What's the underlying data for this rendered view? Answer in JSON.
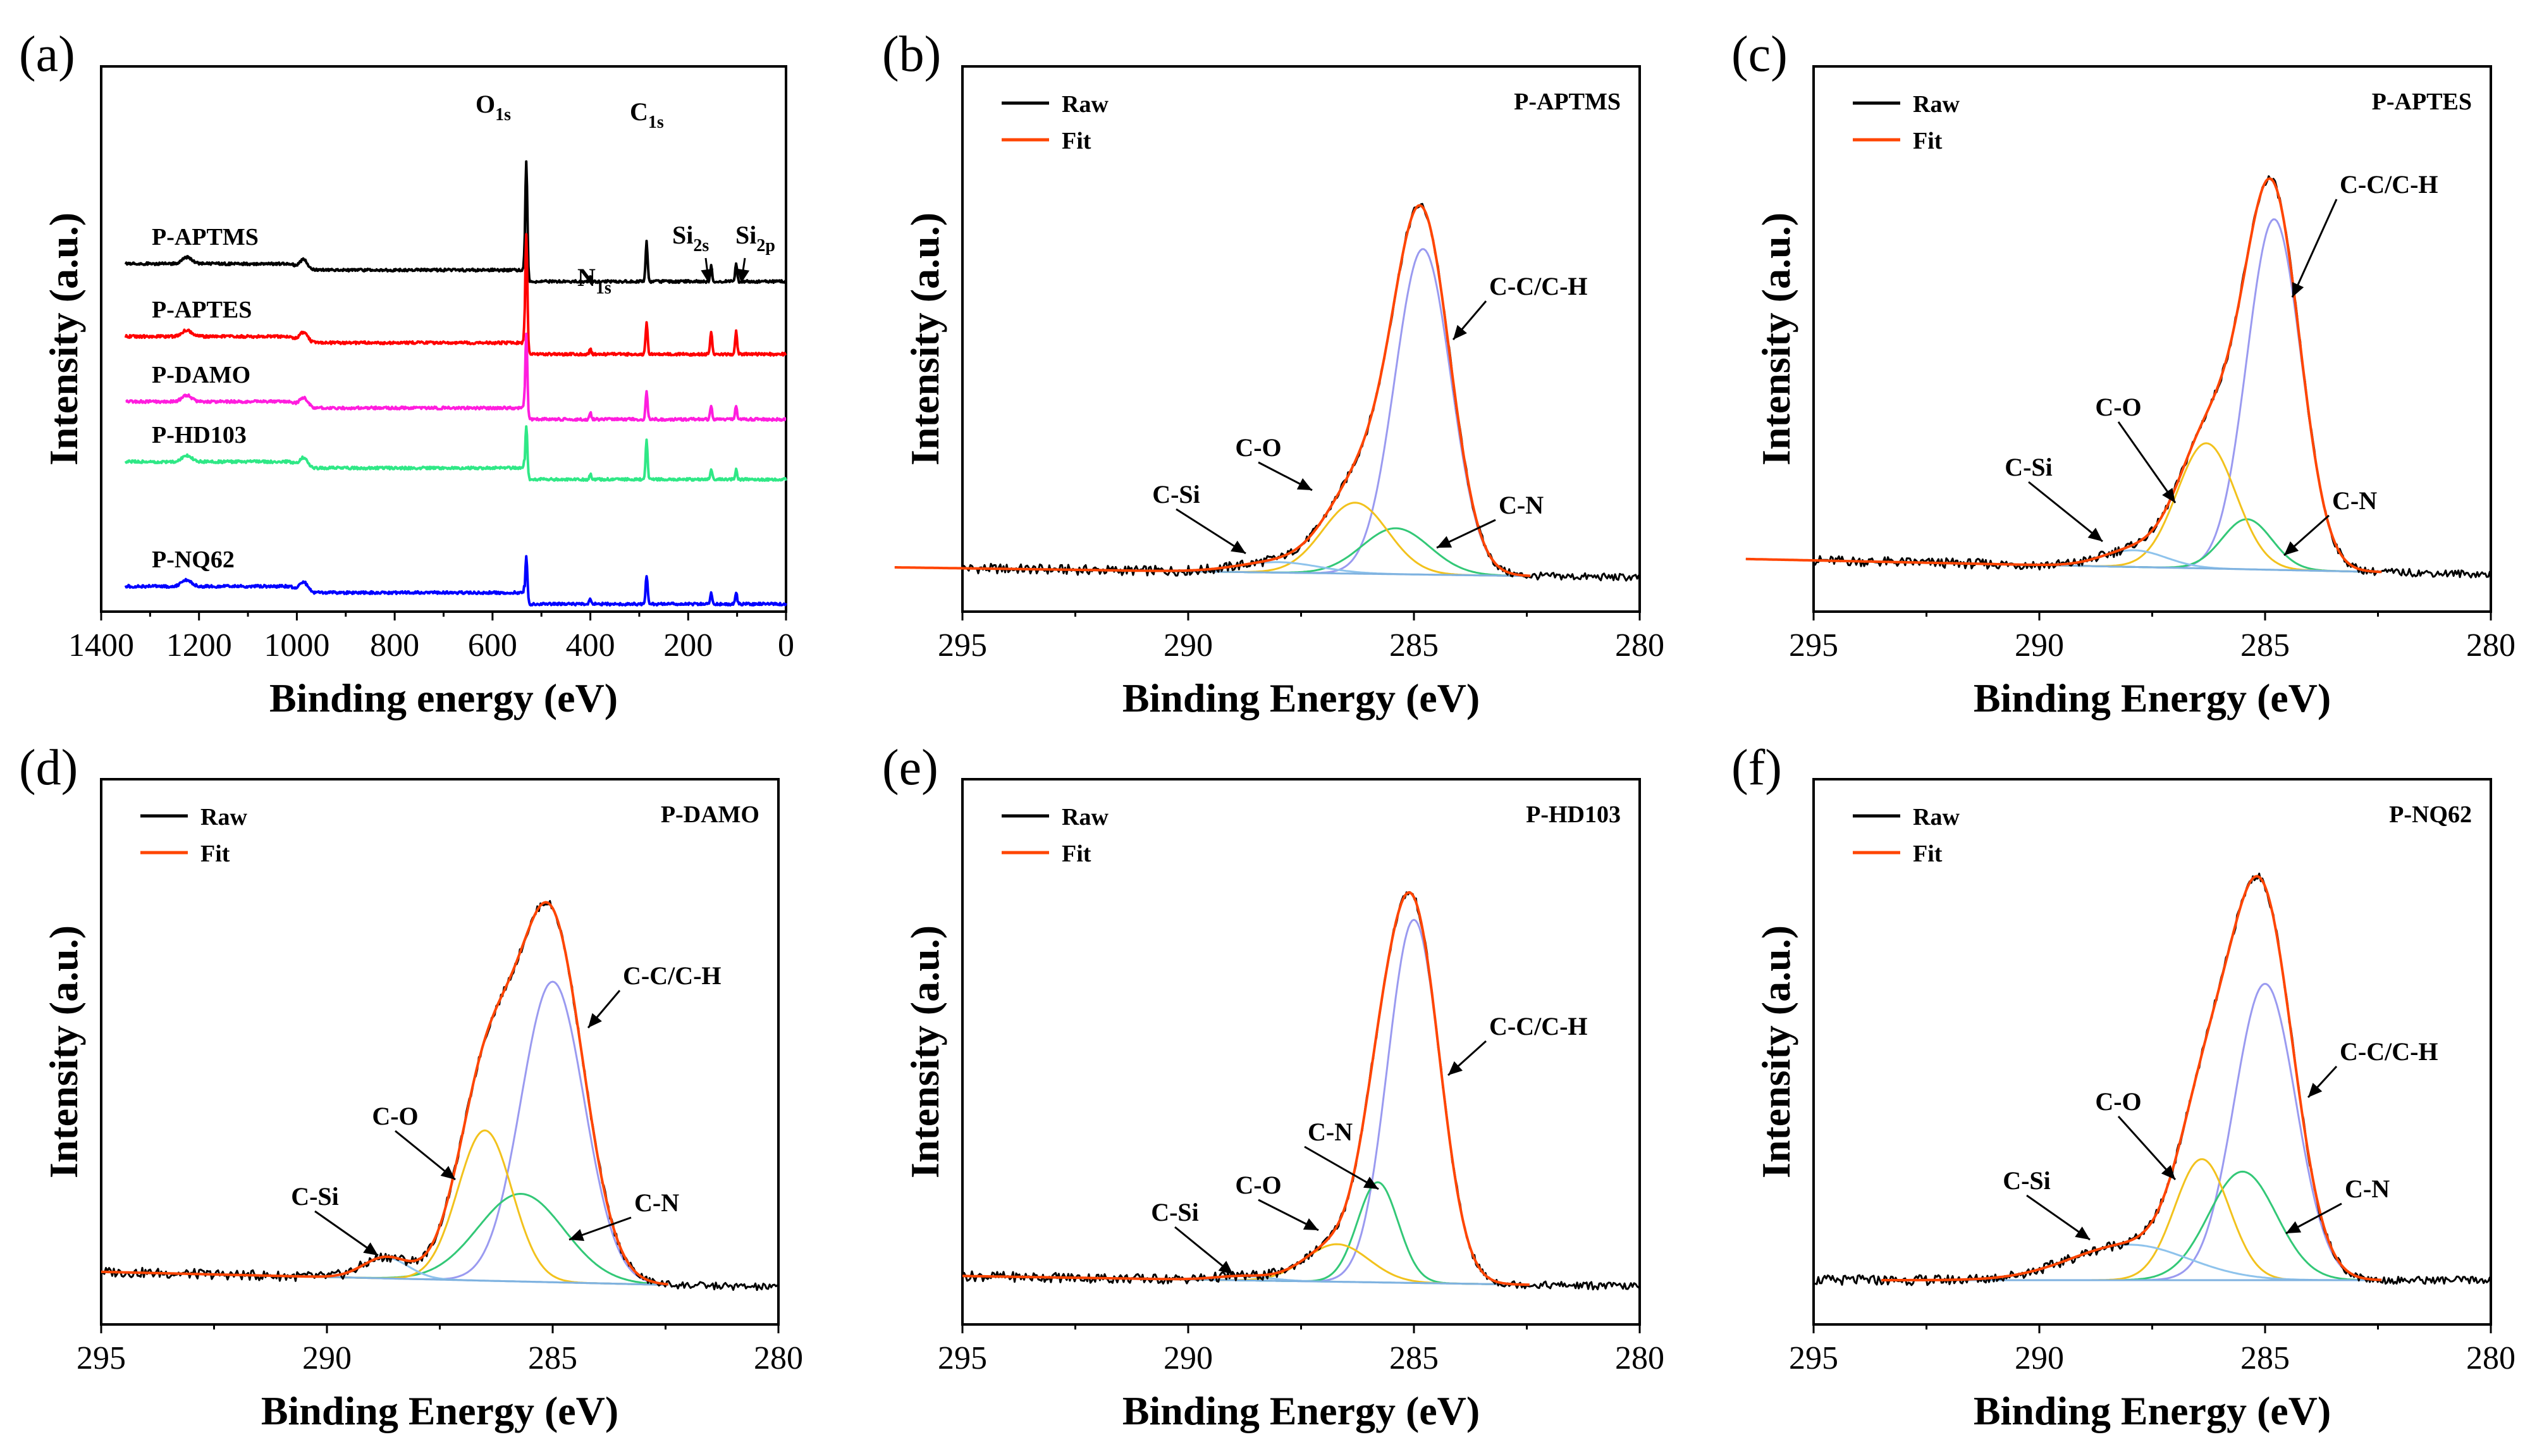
{
  "colors": {
    "raw": "#000000",
    "fit": "#ff4500",
    "c_c": "#9a9af0",
    "c_o": "#f2c21d",
    "c_n": "#33c877",
    "c_si": "#8ec3ec",
    "baseline": "#7fb2e0",
    "survey": [
      "#000000",
      "#ff0000",
      "#ff1dde",
      "#2fe886",
      "#0000ff"
    ]
  },
  "chart_data": [
    {
      "panel": "(a)",
      "type": "line",
      "xlabel": "Binding energy (eV)",
      "ylabel": "Intensity (a.u.)",
      "xlim": [
        1400,
        0
      ],
      "xticks": [
        1400,
        1200,
        1000,
        800,
        600,
        400,
        200,
        0
      ],
      "elements": [
        {
          "base": "O",
          "sub": "1s",
          "x": 531
        },
        {
          "base": "C",
          "sub": "1s",
          "x": 285
        },
        {
          "base": "N",
          "sub": "1s",
          "x": 400
        },
        {
          "base": "Si",
          "sub": "2s",
          "x": 153
        },
        {
          "base": "Si",
          "sub": "2p",
          "x": 102
        }
      ],
      "series": [
        {
          "name": "P-APTMS",
          "offset": 4,
          "peaks": {
            "o": 1.0,
            "c": 0.42,
            "n": 0.06,
            "si2s": 0.16,
            "si2p": 0.18
          }
        },
        {
          "name": "P-APTES",
          "offset": 3,
          "peaks": {
            "o": 1.0,
            "c": 0.34,
            "n": 0.05,
            "si2s": 0.24,
            "si2p": 0.24
          }
        },
        {
          "name": "P-DAMO",
          "offset": 2,
          "peaks": {
            "o": 0.72,
            "c": 0.3,
            "n": 0.07,
            "si2s": 0.14,
            "si2p": 0.14
          }
        },
        {
          "name": "P-HD103",
          "offset": 1,
          "peaks": {
            "o": 0.45,
            "c": 0.42,
            "n": 0.06,
            "si2s": 0.1,
            "si2p": 0.1
          }
        },
        {
          "name": "P-NQ62",
          "offset": 0,
          "peaks": {
            "o": 0.4,
            "c": 0.3,
            "n": 0.05,
            "si2s": 0.12,
            "si2p": 0.12
          }
        }
      ]
    },
    {
      "panel": "(b)",
      "type": "line",
      "title": "P-APTMS",
      "xlabel": "Binding Energy (eV)",
      "ylabel": "Intensity (a.u.)",
      "xlim": [
        295,
        280
      ],
      "xticks": [
        295,
        290,
        285,
        280
      ],
      "legend": [
        "Raw",
        "Fit"
      ],
      "components": [
        {
          "name": "C-C/C-H",
          "center": 284.8,
          "height": 0.78,
          "width": 0.62
        },
        {
          "name": "C-N",
          "center": 285.4,
          "height": 0.11,
          "width": 0.75
        },
        {
          "name": "C-O",
          "center": 286.3,
          "height": 0.17,
          "width": 0.72
        },
        {
          "name": "C-Si",
          "center": 288.0,
          "height": 0.025,
          "width": 0.9
        }
      ],
      "baseline": {
        "start": 296.5,
        "left": 0.0,
        "right": -0.02
      }
    },
    {
      "panel": "(c)",
      "type": "line",
      "title": "P-APTES",
      "xlabel": "Binding Energy (eV)",
      "ylabel": "Intensity (a.u.)",
      "xlim": [
        295,
        280
      ],
      "xticks": [
        295,
        290,
        285,
        280
      ],
      "legend": [
        "Raw",
        "Fit"
      ],
      "components": [
        {
          "name": "C-C/C-H",
          "center": 284.8,
          "height": 0.84,
          "width": 0.6
        },
        {
          "name": "C-N",
          "center": 285.4,
          "height": 0.12,
          "width": 0.55
        },
        {
          "name": "C-O",
          "center": 286.3,
          "height": 0.3,
          "width": 0.65
        },
        {
          "name": "C-Si",
          "center": 287.9,
          "height": 0.04,
          "width": 0.7
        }
      ],
      "baseline": {
        "start": 296.5,
        "left": 0.02,
        "right": -0.01
      }
    },
    {
      "panel": "(d)",
      "type": "line",
      "title": "P-DAMO",
      "xlabel": "Binding Energy (eV)",
      "ylabel": "Intensity (a.u.)",
      "xlim": [
        295,
        280
      ],
      "xticks": [
        295,
        290,
        285,
        280
      ],
      "legend": [
        "Raw",
        "Fit"
      ],
      "components": [
        {
          "name": "C-C/C-H",
          "center": 285.0,
          "height": 0.72,
          "width": 0.7
        },
        {
          "name": "C-N",
          "center": 285.7,
          "height": 0.21,
          "width": 0.95
        },
        {
          "name": "C-O",
          "center": 286.5,
          "height": 0.36,
          "width": 0.6
        },
        {
          "name": "C-Si",
          "center": 288.7,
          "height": 0.05,
          "width": 0.5
        }
      ],
      "baseline": {
        "start": 295.0,
        "left": 0.02,
        "right": -0.01
      }
    },
    {
      "panel": "(e)",
      "type": "line",
      "title": "P-HD103",
      "xlabel": "Binding Energy (eV)",
      "ylabel": "Intensity (a.u.)",
      "xlim": [
        295,
        280
      ],
      "xticks": [
        295,
        290,
        285,
        280
      ],
      "legend": [
        "Raw",
        "Fit"
      ],
      "components": [
        {
          "name": "C-C/C-H",
          "center": 285.0,
          "height": 0.87,
          "width": 0.58
        },
        {
          "name": "C-N",
          "center": 285.8,
          "height": 0.24,
          "width": 0.45
        },
        {
          "name": "C-O",
          "center": 286.7,
          "height": 0.09,
          "width": 0.7
        },
        {
          "name": "C-Si",
          "center": 288.8,
          "height": 0.01,
          "width": 0.6
        }
      ],
      "baseline": {
        "start": 295.0,
        "left": 0.01,
        "right": -0.01
      }
    },
    {
      "panel": "(f)",
      "type": "line",
      "title": "P-NQ62",
      "xlabel": "Binding Energy (eV)",
      "ylabel": "Intensity (a.u.)",
      "xlim": [
        295,
        280
      ],
      "xticks": [
        295,
        290,
        285,
        280
      ],
      "legend": [
        "Raw",
        "Fit"
      ],
      "components": [
        {
          "name": "C-C/C-H",
          "center": 285.0,
          "height": 0.71,
          "width": 0.68
        },
        {
          "name": "C-N",
          "center": 285.5,
          "height": 0.26,
          "width": 0.75
        },
        {
          "name": "C-O",
          "center": 286.4,
          "height": 0.29,
          "width": 0.6
        },
        {
          "name": "C-Si",
          "center": 288.0,
          "height": 0.085,
          "width": 1.3
        }
      ],
      "baseline": {
        "start": 293.5,
        "left": 0.0,
        "right": 0.0
      }
    }
  ]
}
